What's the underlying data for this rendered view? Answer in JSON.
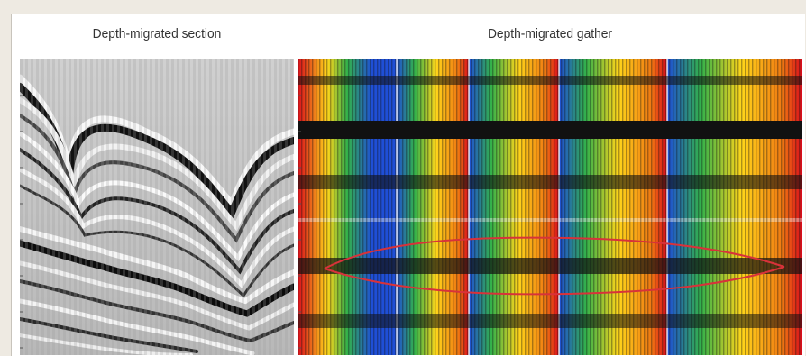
{
  "section": {
    "title": "Depth-migrated section"
  },
  "gather": {
    "title": "Depth-migrated gather"
  },
  "colors": {
    "background": "#eeeae2",
    "panel": "#ffffff",
    "highlight_ellipse": "#d8323a",
    "gather_spectrum": [
      "#d90c1b",
      "#ffd51a",
      "#33b24a",
      "#1f4fd6"
    ]
  }
}
